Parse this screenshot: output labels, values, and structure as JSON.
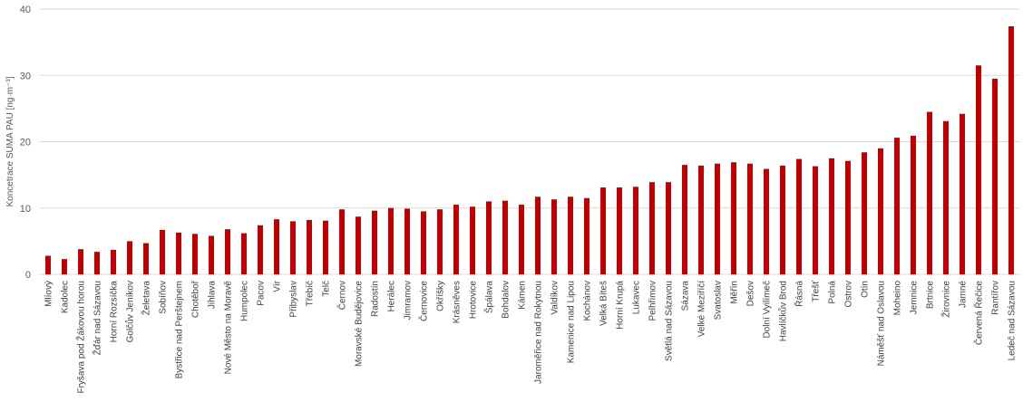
{
  "chart_data": {
    "type": "bar",
    "title": "",
    "xlabel": "",
    "ylabel": "Koncetrace SUMA PAU [ng·m⁻³]",
    "ylim": [
      0,
      40
    ],
    "yticks": [
      0,
      10,
      20,
      30,
      40
    ],
    "grid": true,
    "legend": "none",
    "bar_color": "#c00000",
    "categories": [
      "Mlíový",
      "Kadolec",
      "Fryšava pod Žákovou horou",
      "Žďár nad Sázavou",
      "Horní Rozsíčka",
      "Golčův Jeníkov",
      "Želetava",
      "Sobíňov",
      "Bystřice nad Perštejnem",
      "Chotěboř",
      "Jihlava",
      "Nové Město na Moravě",
      "Humpolec",
      "Pacov",
      "Vír",
      "Přibyslav",
      "Třebíč",
      "Telč",
      "Černov",
      "Moravské Budějovice",
      "Radostín",
      "Herálec",
      "Jimramov",
      "Černovice",
      "Okříšky",
      "Krásněves",
      "Hrotovice",
      "Špálava",
      "Bohdalov",
      "Kámen",
      "Jaroměřice nad Rokytnou",
      "Valdíkov",
      "Kamenice nad Lipou",
      "Kochánov",
      "Velká Bíteš",
      "Horní Krupá",
      "Lukavec",
      "Pelhřimov",
      "Světlá nad Sázavou",
      "Sázava",
      "Velké Meziříčí",
      "Svatoslav",
      "Měřín",
      "Dešov",
      "Dolní Vyilímeč",
      "Havlíčkův Brod",
      "Řásná",
      "Třešť",
      "Polná",
      "Ostrov",
      "Otín",
      "Náměšť nad Oslavou",
      "Moheino",
      "Jemnice",
      "Brtnice",
      "Žirovnice",
      "Jamné",
      "Červená Řečice",
      "Rantířov",
      "Ledeč nad Sázavou"
    ],
    "values": [
      2.8,
      2.3,
      3.8,
      3.4,
      3.7,
      5.0,
      4.7,
      6.7,
      6.3,
      6.1,
      5.8,
      6.8,
      6.2,
      7.4,
      8.3,
      8.0,
      8.2,
      8.1,
      9.8,
      8.7,
      9.6,
      10.0,
      9.9,
      9.5,
      9.8,
      10.5,
      10.2,
      11.0,
      11.1,
      10.5,
      11.7,
      11.3,
      11.7,
      11.5,
      13.1,
      13.1,
      13.2,
      13.9,
      13.9,
      16.5,
      16.4,
      16.7,
      16.9,
      16.7,
      15.9,
      16.4,
      17.4,
      16.3,
      17.5,
      17.1,
      18.4,
      19.0,
      20.6,
      20.9,
      24.5,
      23.1,
      24.2,
      31.5,
      29.5,
      37.4
    ]
  }
}
